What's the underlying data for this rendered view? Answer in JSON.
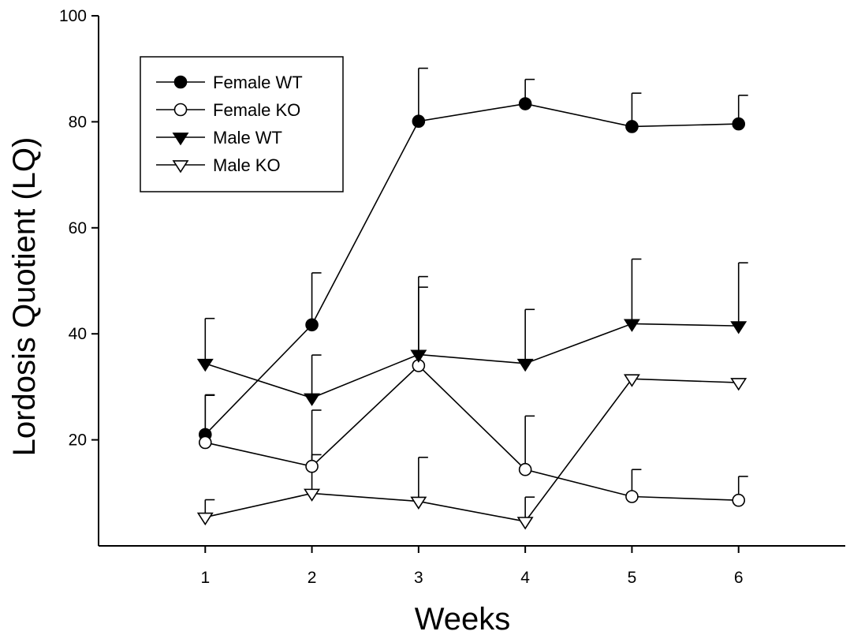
{
  "chart_data": {
    "type": "line",
    "xlabel": "Weeks",
    "ylabel": "Lordosis Quotient (LQ)",
    "x": [
      1,
      2,
      3,
      4,
      5,
      6
    ],
    "xlim": [
      0,
      7
    ],
    "ylim": [
      0,
      100
    ],
    "xticks": [
      1,
      2,
      3,
      4,
      5,
      6
    ],
    "yticks": [
      20,
      40,
      60,
      80,
      100
    ],
    "legend_position": "top-left",
    "series": [
      {
        "name": "Female WT",
        "marker": "circle-filled",
        "values": [
          21,
          41.7,
          80.1,
          83.4,
          79.1,
          79.6
        ],
        "error": [
          7.5,
          9.8,
          10.0,
          4.6,
          6.3,
          5.4
        ]
      },
      {
        "name": "Female KO",
        "marker": "circle-open",
        "values": [
          19.5,
          15,
          34,
          14.4,
          9.3,
          8.6
        ],
        "error": [
          8.9,
          10.6,
          14.8,
          10.1,
          5.1,
          4.5
        ]
      },
      {
        "name": "Male WT",
        "marker": "triangle-down-filled",
        "values": [
          34.4,
          27.9,
          36.1,
          34.4,
          41.9,
          41.5
        ],
        "error": [
          8.5,
          8.1,
          14.7,
          10.2,
          12.2,
          11.9
        ]
      },
      {
        "name": "Male KO",
        "marker": "triangle-down-open",
        "values": [
          5.4,
          9.9,
          8.4,
          4.6,
          31.5,
          30.8
        ],
        "error": [
          3.3,
          7.3,
          8.3,
          4.6,
          0,
          0
        ]
      }
    ]
  }
}
